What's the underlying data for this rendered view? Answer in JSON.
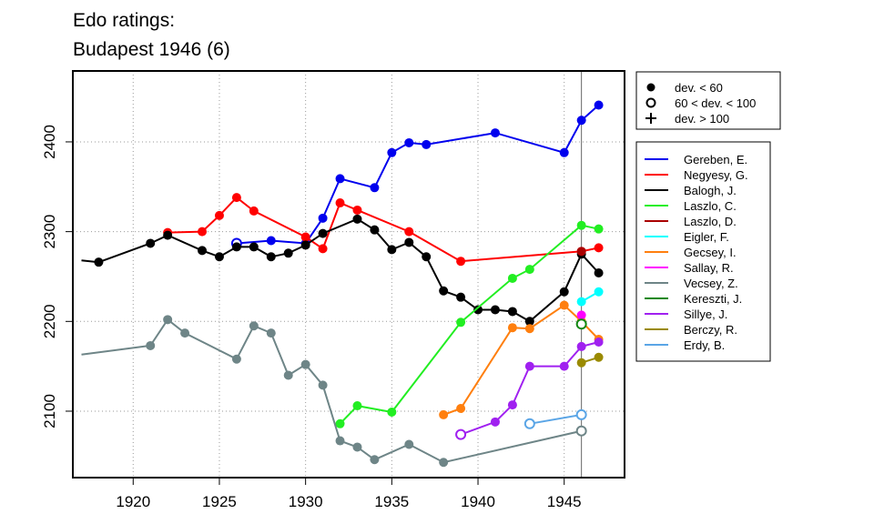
{
  "title_lines": [
    "Edo ratings:",
    "Budapest 1946 (6)"
  ],
  "chart_data": {
    "type": "line",
    "title": "Edo ratings: Budapest 1946 (6)",
    "xlim": [
      1916.5,
      1948.5
    ],
    "ylim": [
      2026,
      2479
    ],
    "x_ticks": [
      1920,
      1925,
      1930,
      1935,
      1940,
      1945
    ],
    "y_ticks": [
      2100,
      2200,
      2300,
      2400
    ],
    "grid": true,
    "event_marker_x": 1946,
    "marker_legend": {
      "placement": "top-right-outside",
      "entries": [
        {
          "label": "dev. < 60",
          "symbol": "filled-circle"
        },
        {
          "label": "60 < dev. < 100",
          "symbol": "open-circle"
        },
        {
          "label": "dev. > 100",
          "symbol": "plus"
        }
      ]
    },
    "series": [
      {
        "name": "Gereben, E.",
        "color": "#0000ee",
        "points": [
          {
            "x": 1926,
            "y": 2287,
            "m": "o"
          },
          {
            "x": 1928,
            "y": 2290,
            "m": "f"
          },
          {
            "x": 1930,
            "y": 2287,
            "m": "f"
          },
          {
            "x": 1931,
            "y": 2315,
            "m": "f"
          },
          {
            "x": 1932,
            "y": 2359,
            "m": "f"
          },
          {
            "x": 1934,
            "y": 2349,
            "m": "f"
          },
          {
            "x": 1935,
            "y": 2388,
            "m": "f"
          },
          {
            "x": 1936,
            "y": 2399,
            "m": "f"
          },
          {
            "x": 1937,
            "y": 2397,
            "m": "f"
          },
          {
            "x": 1941,
            "y": 2410,
            "m": "f"
          },
          {
            "x": 1945,
            "y": 2388,
            "m": "f"
          },
          {
            "x": 1946,
            "y": 2424,
            "m": "f"
          },
          {
            "x": 1947,
            "y": 2441,
            "m": "f"
          }
        ]
      },
      {
        "name": "Negyesy, G.",
        "color": "#ff0000",
        "points": [
          {
            "x": 1922,
            "y": 2299,
            "m": "f"
          },
          {
            "x": 1924,
            "y": 2300,
            "m": "f"
          },
          {
            "x": 1925,
            "y": 2318,
            "m": "f"
          },
          {
            "x": 1926,
            "y": 2338,
            "m": "f"
          },
          {
            "x": 1927,
            "y": 2323,
            "m": "f"
          },
          {
            "x": 1930,
            "y": 2294,
            "m": "f"
          },
          {
            "x": 1931,
            "y": 2281,
            "m": "f"
          },
          {
            "x": 1932,
            "y": 2332,
            "m": "f"
          },
          {
            "x": 1933,
            "y": 2324,
            "m": "f"
          },
          {
            "x": 1936,
            "y": 2300,
            "m": "f"
          },
          {
            "x": 1939,
            "y": 2267,
            "m": "f"
          },
          {
            "x": 1946,
            "y": 2278,
            "m": "f"
          },
          {
            "x": 1947,
            "y": 2282,
            "m": "f"
          }
        ]
      },
      {
        "name": "Balogh, J.",
        "color": "#000000",
        "points": [
          {
            "x": 1917,
            "y": 2268,
            "m": "n"
          },
          {
            "x": 1918,
            "y": 2266,
            "m": "f"
          },
          {
            "x": 1921,
            "y": 2287,
            "m": "f"
          },
          {
            "x": 1922,
            "y": 2296,
            "m": "f"
          },
          {
            "x": 1924,
            "y": 2279,
            "m": "f"
          },
          {
            "x": 1925,
            "y": 2272,
            "m": "f"
          },
          {
            "x": 1926,
            "y": 2283,
            "m": "f"
          },
          {
            "x": 1927,
            "y": 2283,
            "m": "f"
          },
          {
            "x": 1928,
            "y": 2272,
            "m": "f"
          },
          {
            "x": 1929,
            "y": 2276,
            "m": "f"
          },
          {
            "x": 1930,
            "y": 2285,
            "m": "f"
          },
          {
            "x": 1931,
            "y": 2298,
            "m": "f"
          },
          {
            "x": 1933,
            "y": 2314,
            "m": "f"
          },
          {
            "x": 1934,
            "y": 2302,
            "m": "f"
          },
          {
            "x": 1935,
            "y": 2280,
            "m": "f"
          },
          {
            "x": 1936,
            "y": 2288,
            "m": "f"
          },
          {
            "x": 1937,
            "y": 2272,
            "m": "f"
          },
          {
            "x": 1938,
            "y": 2234,
            "m": "f"
          },
          {
            "x": 1939,
            "y": 2227,
            "m": "f"
          },
          {
            "x": 1940,
            "y": 2213,
            "m": "f"
          },
          {
            "x": 1941,
            "y": 2213,
            "m": "f"
          },
          {
            "x": 1942,
            "y": 2211,
            "m": "f"
          },
          {
            "x": 1943,
            "y": 2200,
            "m": "f"
          },
          {
            "x": 1945,
            "y": 2233,
            "m": "f"
          },
          {
            "x": 1946,
            "y": 2275,
            "m": "f"
          },
          {
            "x": 1947,
            "y": 2254,
            "m": "f"
          }
        ]
      },
      {
        "name": "Laszlo, C.",
        "color": "#22ee22",
        "points": [
          {
            "x": 1932,
            "y": 2086,
            "m": "f"
          },
          {
            "x": 1933,
            "y": 2106,
            "m": "f"
          },
          {
            "x": 1935,
            "y": 2099,
            "m": "f"
          },
          {
            "x": 1939,
            "y": 2199,
            "m": "f"
          },
          {
            "x": 1942,
            "y": 2248,
            "m": "f"
          },
          {
            "x": 1943,
            "y": 2258,
            "m": "f"
          },
          {
            "x": 1946,
            "y": 2307,
            "m": "f"
          },
          {
            "x": 1947,
            "y": 2303,
            "m": "f"
          }
        ]
      },
      {
        "name": "Laszlo, D.",
        "color": "#aa0000",
        "points": [
          {
            "x": 1946,
            "y": 2278,
            "m": "f"
          }
        ]
      },
      {
        "name": "Eigler, F.",
        "color": "#00ffff",
        "points": [
          {
            "x": 1946,
            "y": 2222,
            "m": "f"
          },
          {
            "x": 1947,
            "y": 2233,
            "m": "f"
          }
        ]
      },
      {
        "name": "Gecsey, I.",
        "color": "#ff7f0e",
        "points": [
          {
            "x": 1938,
            "y": 2096,
            "m": "f"
          },
          {
            "x": 1939,
            "y": 2103,
            "m": "f"
          },
          {
            "x": 1942,
            "y": 2193,
            "m": "f"
          },
          {
            "x": 1943,
            "y": 2192,
            "m": "f"
          },
          {
            "x": 1945,
            "y": 2218,
            "m": "f"
          },
          {
            "x": 1946,
            "y": 2200,
            "m": "f"
          },
          {
            "x": 1947,
            "y": 2180,
            "m": "f"
          }
        ]
      },
      {
        "name": "Sallay, R.",
        "color": "#ff00ff",
        "points": [
          {
            "x": 1946,
            "y": 2207,
            "m": "f"
          }
        ]
      },
      {
        "name": "Vecsey, Z.",
        "color": "#6e8587",
        "points": [
          {
            "x": 1917,
            "y": 2163,
            "m": "n"
          },
          {
            "x": 1921,
            "y": 2173,
            "m": "f"
          },
          {
            "x": 1922,
            "y": 2202,
            "m": "f"
          },
          {
            "x": 1923,
            "y": 2187,
            "m": "f"
          },
          {
            "x": 1926,
            "y": 2158,
            "m": "f"
          },
          {
            "x": 1927,
            "y": 2195,
            "m": "f"
          },
          {
            "x": 1928,
            "y": 2187,
            "m": "f"
          },
          {
            "x": 1929,
            "y": 2140,
            "m": "f"
          },
          {
            "x": 1930,
            "y": 2152,
            "m": "f"
          },
          {
            "x": 1931,
            "y": 2129,
            "m": "f"
          },
          {
            "x": 1932,
            "y": 2067,
            "m": "f"
          },
          {
            "x": 1933,
            "y": 2060,
            "m": "f"
          },
          {
            "x": 1934,
            "y": 2046,
            "m": "f"
          },
          {
            "x": 1936,
            "y": 2063,
            "m": "f"
          },
          {
            "x": 1938,
            "y": 2043,
            "m": "f"
          },
          {
            "x": 1946,
            "y": 2078,
            "m": "o"
          }
        ]
      },
      {
        "name": "Kereszti, J.",
        "color": "#118811",
        "points": [
          {
            "x": 1946,
            "y": 2197,
            "m": "o"
          }
        ]
      },
      {
        "name": "Sillye, J.",
        "color": "#a020f0",
        "points": [
          {
            "x": 1939,
            "y": 2074,
            "m": "o"
          },
          {
            "x": 1941,
            "y": 2088,
            "m": "f"
          },
          {
            "x": 1942,
            "y": 2107,
            "m": "f"
          },
          {
            "x": 1943,
            "y": 2150,
            "m": "f"
          },
          {
            "x": 1945,
            "y": 2150,
            "m": "f"
          },
          {
            "x": 1946,
            "y": 2172,
            "m": "f"
          },
          {
            "x": 1947,
            "y": 2177,
            "m": "f"
          }
        ]
      },
      {
        "name": "Berczy, R.",
        "color": "#9a8a00",
        "points": [
          {
            "x": 1946,
            "y": 2154,
            "m": "f"
          },
          {
            "x": 1947,
            "y": 2160,
            "m": "f"
          }
        ]
      },
      {
        "name": "Erdy, B.",
        "color": "#5aa5e6",
        "points": [
          {
            "x": 1943,
            "y": 2086,
            "m": "o"
          },
          {
            "x": 1946,
            "y": 2096,
            "m": "o"
          }
        ]
      }
    ]
  }
}
